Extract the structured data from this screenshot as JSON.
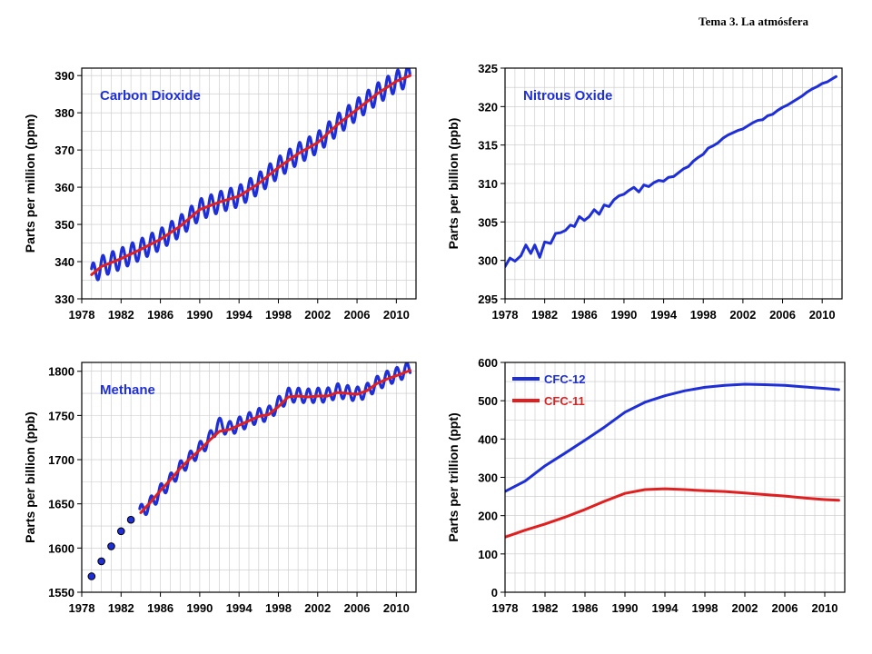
{
  "header": {
    "title": "Tema 3. La atmósfera"
  },
  "colors": {
    "blue": "#1f2fd8",
    "red": "#e02020",
    "grid": "#c8c8c8",
    "frame": "#000000"
  },
  "chart_data": [
    {
      "id": "co2",
      "type": "line",
      "title": "Carbon Dioxide",
      "xlabel": "",
      "ylabel": "Parts per million (ppm)",
      "xlim": [
        1978,
        2012
      ],
      "ylim": [
        330,
        392
      ],
      "xticks": [
        1978,
        1982,
        1986,
        1990,
        1994,
        1998,
        2002,
        2006,
        2010
      ],
      "yticks": [
        330,
        340,
        350,
        360,
        370,
        380,
        390
      ],
      "grid": true,
      "series": [
        {
          "name": "",
          "color": "#1f2fd8",
          "kind": "seasonal",
          "x": [
            1979,
            1980,
            1982,
            1984,
            1986,
            1988,
            1990,
            1992,
            1994,
            1996,
            1998,
            2000,
            2002,
            2004,
            2006,
            2008,
            2010,
            2011.4
          ],
          "y": [
            336.5,
            338.7,
            340.8,
            343.3,
            346.0,
            349.5,
            354.0,
            356.0,
            357.6,
            361.0,
            365.3,
            369.0,
            372.0,
            376.8,
            380.9,
            385.0,
            388.5,
            390.0
          ],
          "amplitude": 2.8
        },
        {
          "name": "",
          "color": "#e02020",
          "kind": "trend",
          "x": [
            1979,
            1980,
            1982,
            1984,
            1986,
            1988,
            1990,
            1992,
            1994,
            1996,
            1998,
            2000,
            2002,
            2004,
            2006,
            2008,
            2010,
            2011.4
          ],
          "y": [
            336.5,
            338.7,
            340.8,
            343.3,
            346.0,
            349.5,
            354.0,
            356.0,
            357.6,
            361.0,
            365.3,
            369.0,
            372.0,
            376.8,
            380.9,
            385.0,
            388.5,
            390.0
          ]
        }
      ]
    },
    {
      "id": "n2o",
      "type": "line",
      "title": "Nitrous Oxide",
      "xlabel": "",
      "ylabel": "Parts per billion (ppb)",
      "xlim": [
        1978,
        2012
      ],
      "ylim": [
        295,
        325
      ],
      "xticks": [
        1978,
        1982,
        1986,
        1990,
        1994,
        1998,
        2002,
        2006,
        2010
      ],
      "yticks": [
        295,
        300,
        305,
        310,
        315,
        320,
        325
      ],
      "grid": true,
      "series": [
        {
          "name": "",
          "color": "#1f2fd8",
          "kind": "plain",
          "x": [
            1978.0,
            1978.5,
            1979.0,
            1979.6,
            1980.1,
            1980.6,
            1981.0,
            1981.5,
            1982.0,
            1982.6,
            1983.1,
            1983.6,
            1984.1,
            1984.6,
            1985.0,
            1985.5,
            1986.0,
            1986.5,
            1987.0,
            1987.5,
            1988.0,
            1988.5,
            1989.0,
            1989.5,
            1990.0,
            1990.5,
            1991.0,
            1991.5,
            1992.0,
            1992.5,
            1993.0,
            1993.5,
            1994.0,
            1994.5,
            1995.0,
            1995.5,
            1996.0,
            1996.5,
            1997.0,
            1997.5,
            1998.0,
            1998.5,
            1999.0,
            1999.5,
            2000.0,
            2000.5,
            2001.0,
            2001.5,
            2002.0,
            2002.5,
            2003.0,
            2003.5,
            2004.0,
            2004.5,
            2005.0,
            2005.5,
            2006.0,
            2006.5,
            2007.0,
            2007.5,
            2008.0,
            2008.5,
            2009.0,
            2009.5,
            2010.0,
            2010.5,
            2011.0,
            2011.4
          ],
          "y": [
            299.2,
            300.3,
            299.9,
            300.6,
            302.0,
            300.9,
            302.0,
            300.4,
            302.4,
            302.2,
            303.5,
            303.6,
            303.9,
            304.6,
            304.4,
            305.7,
            305.2,
            305.7,
            306.6,
            306.0,
            307.2,
            307.0,
            307.9,
            308.4,
            308.6,
            309.1,
            309.5,
            308.9,
            309.8,
            309.6,
            310.1,
            310.4,
            310.3,
            310.8,
            310.9,
            311.4,
            311.9,
            312.2,
            312.9,
            313.4,
            313.8,
            314.6,
            314.9,
            315.3,
            315.9,
            316.3,
            316.6,
            316.9,
            317.1,
            317.5,
            317.9,
            318.2,
            318.3,
            318.8,
            319.0,
            319.5,
            319.9,
            320.2,
            320.6,
            321.0,
            321.4,
            321.9,
            322.3,
            322.6,
            323.0,
            323.2,
            323.6,
            323.9
          ]
        }
      ]
    },
    {
      "id": "ch4",
      "type": "line",
      "title": "Methane",
      "xlabel": "",
      "ylabel": "Parts per billion (ppb)",
      "xlim": [
        1978,
        2012
      ],
      "ylim": [
        1550,
        1810
      ],
      "xticks": [
        1978,
        1982,
        1986,
        1990,
        1994,
        1998,
        2002,
        2006,
        2010
      ],
      "yticks": [
        1550,
        1600,
        1650,
        1700,
        1750,
        1800
      ],
      "grid": true,
      "points": {
        "name": "",
        "color": "#1f2fd8",
        "x": [
          1979,
          1980,
          1981,
          1982,
          1983
        ],
        "y": [
          1568,
          1585,
          1602,
          1619,
          1632
        ]
      },
      "series": [
        {
          "name": "",
          "color": "#1f2fd8",
          "kind": "seasonal",
          "x": [
            1983.9,
            1985,
            1986,
            1987,
            1988,
            1989,
            1990,
            1991,
            1991.8,
            1993,
            1994,
            1995,
            1996,
            1997,
            1998,
            1999,
            2000,
            2001,
            2002,
            2003,
            2004,
            2005,
            2006,
            2007,
            2008,
            2009,
            2010,
            2011.4
          ],
          "y": [
            1640,
            1650,
            1664,
            1676,
            1690,
            1701,
            1712,
            1723,
            1740,
            1735,
            1740,
            1745,
            1750,
            1752,
            1763,
            1773,
            1773,
            1772,
            1773,
            1773,
            1778,
            1776,
            1774,
            1778,
            1786,
            1792,
            1796,
            1803
          ],
          "amplitude": 8
        },
        {
          "name": "",
          "color": "#e02020",
          "kind": "trend",
          "x": [
            1984,
            1985,
            1986,
            1987,
            1988,
            1989,
            1990,
            1991,
            1992,
            1993,
            1994,
            1995,
            1996,
            1997,
            1998,
            1999,
            2000,
            2001,
            2002,
            2003,
            2004,
            2005,
            2006,
            2007,
            2008,
            2009,
            2010,
            2011.4
          ],
          "y": [
            1640,
            1652,
            1665,
            1677,
            1690,
            1701,
            1711,
            1722,
            1732,
            1734,
            1739,
            1744,
            1749,
            1751,
            1760,
            1771,
            1772,
            1771,
            1772,
            1772,
            1776,
            1775,
            1774,
            1778,
            1786,
            1791,
            1795,
            1801
          ]
        }
      ]
    },
    {
      "id": "cfc",
      "type": "line",
      "title": "",
      "xlabel": "",
      "ylabel": "Parts per trillion (ppt)",
      "xlim": [
        1978,
        2012
      ],
      "ylim": [
        0,
        600
      ],
      "xticks": [
        1978,
        1982,
        1986,
        1990,
        1994,
        1998,
        2002,
        2006,
        2010
      ],
      "yticks": [
        0,
        100,
        200,
        300,
        400,
        500,
        600
      ],
      "grid": true,
      "legend": "top-left",
      "series": [
        {
          "name": "CFC-12",
          "color": "#1f2fd8",
          "kind": "plain",
          "x": [
            1978,
            1980,
            1982,
            1984,
            1986,
            1988,
            1990,
            1992,
            1994,
            1996,
            1998,
            2000,
            2002,
            2004,
            2006,
            2008,
            2010,
            2011.4
          ],
          "y": [
            263,
            290,
            330,
            363,
            397,
            432,
            470,
            496,
            513,
            526,
            535,
            540,
            543,
            542,
            540,
            536,
            532,
            529
          ]
        },
        {
          "name": "CFC-11",
          "color": "#e02020",
          "kind": "plain",
          "x": [
            1978,
            1980,
            1982,
            1984,
            1986,
            1988,
            1990,
            1992,
            1994,
            1996,
            1998,
            2000,
            2002,
            2004,
            2006,
            2008,
            2010,
            2011.4
          ],
          "y": [
            144,
            162,
            178,
            196,
            216,
            238,
            258,
            268,
            270,
            268,
            265,
            263,
            259,
            255,
            251,
            246,
            242,
            240
          ]
        }
      ]
    }
  ]
}
